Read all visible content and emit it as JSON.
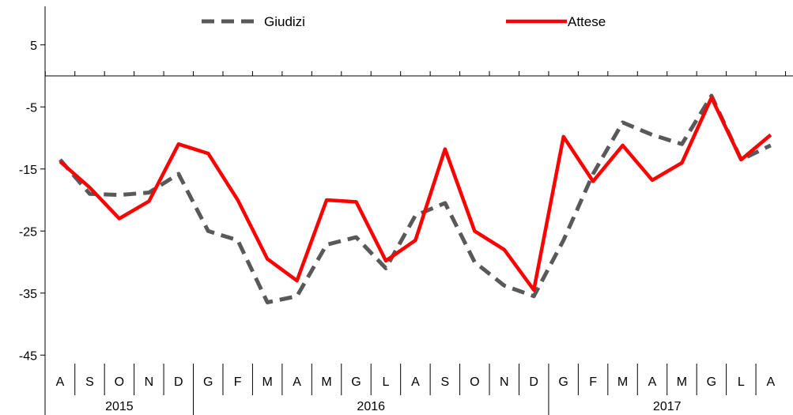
{
  "chart_data": {
    "type": "line",
    "title": "",
    "xlabel": "",
    "ylabel": "",
    "ylim": [
      -45,
      5
    ],
    "yticks": [
      "5",
      "-5",
      "-15",
      "-25",
      "-35",
      "-45"
    ],
    "ytick_values": [
      5,
      -5,
      -15,
      -25,
      -35,
      -45
    ],
    "grid": false,
    "legend_position": "top",
    "categories": [
      "A",
      "S",
      "O",
      "N",
      "D",
      "G",
      "F",
      "M",
      "A",
      "M",
      "G",
      "L",
      "A",
      "S",
      "O",
      "N",
      "D",
      "G",
      "F",
      "M",
      "A",
      "M",
      "G",
      "L",
      "A"
    ],
    "year_groups": [
      {
        "label": "2015",
        "start": 0,
        "end": 4
      },
      {
        "label": "2016",
        "start": 5,
        "end": 16
      },
      {
        "label": "2017",
        "start": 17,
        "end": 24
      }
    ],
    "series": [
      {
        "name": "Giudizi",
        "color": "#595959",
        "dash": true,
        "values": [
          -13.5,
          -19.0,
          -19.2,
          -18.8,
          -15.8,
          -25.0,
          -26.5,
          -36.5,
          -35.5,
          -27.2,
          -26.0,
          -31.0,
          -22.5,
          -20.5,
          -30.0,
          -33.8,
          -35.5,
          -26.5,
          -15.8,
          -7.5,
          -9.5,
          -11.0,
          -3.2,
          -13.5,
          -11.2
        ]
      },
      {
        "name": "Attese",
        "color": "#ff0000",
        "dash": false,
        "values": [
          -13.8,
          -18.0,
          -23.0,
          -20.2,
          -11.0,
          -12.5,
          -20.0,
          -29.5,
          -33.0,
          -20.0,
          -20.3,
          -29.8,
          -26.5,
          -11.8,
          -25.0,
          -28.0,
          -34.5,
          -9.8,
          -17.0,
          -11.2,
          -16.8,
          -14.0,
          -3.5,
          -13.5,
          -9.5
        ]
      }
    ]
  }
}
